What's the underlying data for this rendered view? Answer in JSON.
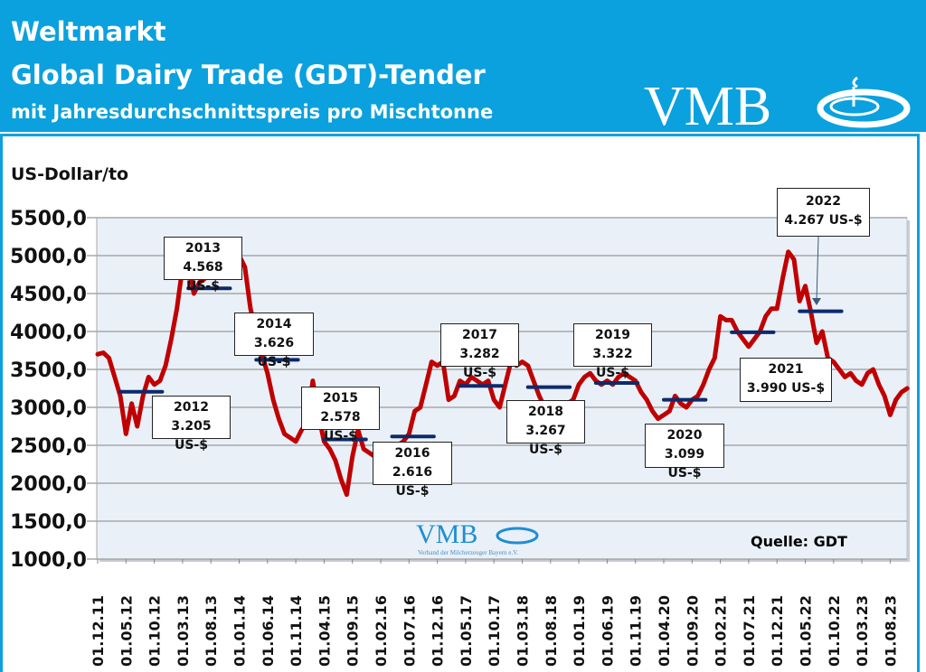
{
  "header": {
    "title_line1": "Weltmarkt",
    "title_line2": "Global Dairy Trade (GDT)-Tender",
    "subtitle": "mit Jahresdurchschnittspreis pro Mischtonne",
    "logo_text": "VMB"
  },
  "watermark": {
    "logo_text": "VMB",
    "tagline": "Verband der Milcherzeuger Bayern e.V."
  },
  "source": "Quelle: GDT",
  "colors": {
    "header_bg": "#0aa1de",
    "plot_bg": "#e9f0f8",
    "line": "#c00000",
    "average_bar": "#0d2a6b"
  },
  "chart_data": {
    "type": "line",
    "ylabel": "US-Dollar/to",
    "ylim": [
      1000,
      5500
    ],
    "yticks": [
      "5500,0",
      "5000,0",
      "4500,0",
      "4000,0",
      "3500,0",
      "3000,0",
      "2500,0",
      "2000,0",
      "1500,0",
      "1000,0"
    ],
    "ytick_values": [
      5500,
      5000,
      4500,
      4000,
      3500,
      3000,
      2500,
      2000,
      1500,
      1000
    ],
    "xlim": [
      "2011-12",
      "2023-11"
    ],
    "xticks": [
      "01.12.11",
      "01.05.12",
      "01.10.12",
      "01.03.13",
      "01.08.13",
      "01.01.14",
      "01.06.14",
      "01.11.14",
      "01.04.15",
      "01.09.15",
      "01.02.16",
      "01.07.16",
      "01.12.16",
      "01.05.17",
      "01.10.17",
      "01.03.18",
      "01.08.18",
      "01.01.19",
      "01.06.19",
      "01.11.19",
      "01.04.20",
      "01.09.20",
      "01.02.21",
      "01.07.21",
      "01.12.21",
      "01.05.22",
      "01.10.22",
      "01.03.23",
      "01.08.23"
    ],
    "grid": true,
    "series": [
      {
        "points": [
          [
            "2011-12",
            3700
          ],
          [
            "2012-01",
            3720
          ],
          [
            "2012-02",
            3650
          ],
          [
            "2012-03",
            3400
          ],
          [
            "2012-04",
            3150
          ],
          [
            "2012-05",
            2650
          ],
          [
            "2012-06",
            3050
          ],
          [
            "2012-07",
            2750
          ],
          [
            "2012-08",
            3150
          ],
          [
            "2012-09",
            3400
          ],
          [
            "2012-10",
            3300
          ],
          [
            "2012-11",
            3350
          ],
          [
            "2012-12",
            3550
          ],
          [
            "2013-01",
            3900
          ],
          [
            "2013-02",
            4300
          ],
          [
            "2013-03",
            4850
          ],
          [
            "2013-04",
            4900
          ],
          [
            "2013-05",
            4500
          ],
          [
            "2013-06",
            4650
          ],
          [
            "2013-07",
            4700
          ],
          [
            "2013-08",
            4800
          ],
          [
            "2013-09",
            4850
          ],
          [
            "2013-10",
            4900
          ],
          [
            "2013-11",
            4950
          ],
          [
            "2013-12",
            5050
          ],
          [
            "2014-01",
            5000
          ],
          [
            "2014-02",
            4850
          ],
          [
            "2014-03",
            4300
          ],
          [
            "2014-04",
            4000
          ],
          [
            "2014-05",
            3700
          ],
          [
            "2014-06",
            3450
          ],
          [
            "2014-07",
            3100
          ],
          [
            "2014-08",
            2850
          ],
          [
            "2014-09",
            2650
          ],
          [
            "2014-10",
            2600
          ],
          [
            "2014-11",
            2550
          ],
          [
            "2014-12",
            2700
          ],
          [
            "2015-01",
            2800
          ],
          [
            "2015-02",
            3350
          ],
          [
            "2015-03",
            2900
          ],
          [
            "2015-04",
            2550
          ],
          [
            "2015-05",
            2450
          ],
          [
            "2015-06",
            2300
          ],
          [
            "2015-07",
            2050
          ],
          [
            "2015-08",
            1850
          ],
          [
            "2015-09",
            2350
          ],
          [
            "2015-10",
            2700
          ],
          [
            "2015-11",
            2450
          ],
          [
            "2015-12",
            2400
          ],
          [
            "2016-01",
            2350
          ],
          [
            "2016-02",
            2300
          ],
          [
            "2016-03",
            2400
          ],
          [
            "2016-04",
            2450
          ],
          [
            "2016-05",
            2500
          ],
          [
            "2016-06",
            2550
          ],
          [
            "2016-07",
            2650
          ],
          [
            "2016-08",
            2950
          ],
          [
            "2016-09",
            3000
          ],
          [
            "2016-10",
            3300
          ],
          [
            "2016-11",
            3600
          ],
          [
            "2016-12",
            3550
          ],
          [
            "2017-01",
            3600
          ],
          [
            "2017-02",
            3100
          ],
          [
            "2017-03",
            3150
          ],
          [
            "2017-04",
            3350
          ],
          [
            "2017-05",
            3300
          ],
          [
            "2017-06",
            3400
          ],
          [
            "2017-07",
            3350
          ],
          [
            "2017-08",
            3300
          ],
          [
            "2017-09",
            3350
          ],
          [
            "2017-10",
            3100
          ],
          [
            "2017-11",
            3000
          ],
          [
            "2017-12",
            3300
          ],
          [
            "2018-01",
            3600
          ],
          [
            "2018-02",
            3550
          ],
          [
            "2018-03",
            3600
          ],
          [
            "2018-04",
            3550
          ],
          [
            "2018-05",
            3350
          ],
          [
            "2018-06",
            3150
          ],
          [
            "2018-07",
            3000
          ],
          [
            "2018-08",
            2950
          ],
          [
            "2018-09",
            2950
          ],
          [
            "2018-10",
            3000
          ],
          [
            "2018-11",
            3050
          ],
          [
            "2018-12",
            3100
          ],
          [
            "2019-01",
            3300
          ],
          [
            "2019-02",
            3400
          ],
          [
            "2019-03",
            3450
          ],
          [
            "2019-04",
            3350
          ],
          [
            "2019-05",
            3300
          ],
          [
            "2019-06",
            3350
          ],
          [
            "2019-07",
            3300
          ],
          [
            "2019-08",
            3400
          ],
          [
            "2019-09",
            3450
          ],
          [
            "2019-10",
            3400
          ],
          [
            "2019-11",
            3350
          ],
          [
            "2019-12",
            3200
          ],
          [
            "2020-01",
            3100
          ],
          [
            "2020-02",
            2950
          ],
          [
            "2020-03",
            2850
          ],
          [
            "2020-04",
            2900
          ],
          [
            "2020-05",
            2950
          ],
          [
            "2020-06",
            3150
          ],
          [
            "2020-07",
            3050
          ],
          [
            "2020-08",
            3000
          ],
          [
            "2020-09",
            3100
          ],
          [
            "2020-10",
            3150
          ],
          [
            "2020-11",
            3300
          ],
          [
            "2020-12",
            3500
          ],
          [
            "2021-01",
            3650
          ],
          [
            "2021-02",
            4200
          ],
          [
            "2021-03",
            4150
          ],
          [
            "2021-04",
            4150
          ],
          [
            "2021-05",
            4000
          ],
          [
            "2021-06",
            3900
          ],
          [
            "2021-07",
            3800
          ],
          [
            "2021-08",
            3900
          ],
          [
            "2021-09",
            4000
          ],
          [
            "2021-10",
            4200
          ],
          [
            "2021-11",
            4300
          ],
          [
            "2021-12",
            4300
          ],
          [
            "2022-01",
            4700
          ],
          [
            "2022-02",
            5050
          ],
          [
            "2022-03",
            4950
          ],
          [
            "2022-04",
            4400
          ],
          [
            "2022-05",
            4600
          ],
          [
            "2022-06",
            4250
          ],
          [
            "2022-07",
            3850
          ],
          [
            "2022-08",
            4000
          ],
          [
            "2022-09",
            3650
          ],
          [
            "2022-10",
            3600
          ],
          [
            "2022-11",
            3500
          ],
          [
            "2022-12",
            3400
          ],
          [
            "2023-01",
            3450
          ],
          [
            "2023-02",
            3350
          ],
          [
            "2023-03",
            3300
          ],
          [
            "2023-04",
            3450
          ],
          [
            "2023-05",
            3500
          ],
          [
            "2023-06",
            3300
          ],
          [
            "2023-07",
            3150
          ],
          [
            "2023-08",
            2900
          ],
          [
            "2023-09",
            3100
          ],
          [
            "2023-10",
            3200
          ],
          [
            "2023-11",
            3250
          ]
        ]
      }
    ],
    "annual_averages": [
      {
        "year": "2012",
        "value": 3205,
        "label": "3.205 US-$"
      },
      {
        "year": "2013",
        "value": 4568,
        "label": "4.568 US-$"
      },
      {
        "year": "2014",
        "value": 3626,
        "label": "3.626 US-$"
      },
      {
        "year": "2015",
        "value": 2578,
        "label": "2.578 US-$"
      },
      {
        "year": "2016",
        "value": 2616,
        "label": "2.616 US-$"
      },
      {
        "year": "2017",
        "value": 3282,
        "label": "3.282 US-$"
      },
      {
        "year": "2018",
        "value": 3267,
        "label": "3.267 US-$"
      },
      {
        "year": "2019",
        "value": 3322,
        "label": "3.322 US-$"
      },
      {
        "year": "2020",
        "value": 3099,
        "label": "3.099 US-$"
      },
      {
        "year": "2021",
        "value": 3990,
        "label": "3.990 US-$"
      },
      {
        "year": "2022",
        "value": 4267,
        "label": "4.267 US-$"
      }
    ]
  }
}
